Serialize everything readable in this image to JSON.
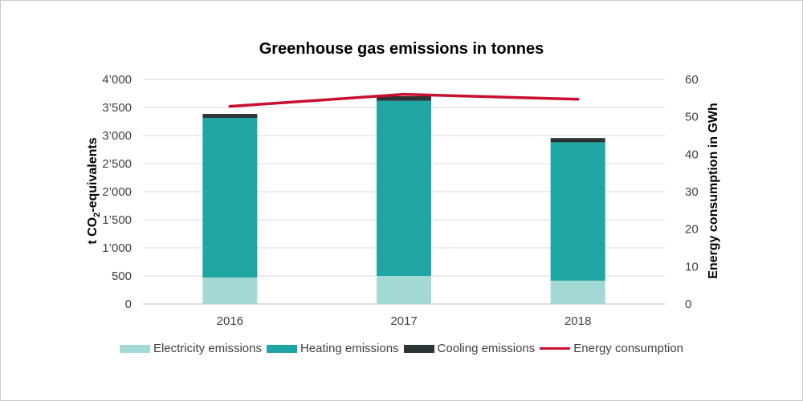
{
  "chart_data": {
    "type": "bar",
    "title": "Greenhouse gas emissions in tonnes",
    "categories": [
      "2016",
      "2017",
      "2018"
    ],
    "ylabel_parts": [
      "t CO",
      "2",
      "-equivalents"
    ],
    "y2label": "Energy consumption in GWh",
    "ylim": [
      0,
      4000
    ],
    "y2lim": [
      0,
      60
    ],
    "yticks": [
      "0",
      "500",
      "1’000",
      "1’500",
      "2’000",
      "2’500",
      "3’000",
      "3’500",
      "4’000"
    ],
    "y2ticks": [
      "0",
      "10",
      "20",
      "30",
      "40",
      "50",
      "60"
    ],
    "grid": true,
    "legend_position": "bottom",
    "series": [
      {
        "name": "Electricity emissions",
        "kind": "stacked-bar",
        "axis": "left",
        "color": "#a3d9d4",
        "values": [
          470,
          500,
          415
        ]
      },
      {
        "name": "Heating emissions",
        "kind": "stacked-bar",
        "axis": "left",
        "color": "#1fa5a3",
        "values": [
          2845,
          3120,
          2465
        ]
      },
      {
        "name": "Cooling emissions",
        "kind": "stacked-bar",
        "axis": "left",
        "color": "#2d3436",
        "values": [
          70,
          80,
          75
        ]
      },
      {
        "name": "Energy consumption",
        "kind": "line",
        "axis": "right",
        "color": "#c8102e",
        "values": [
          52.8,
          56.0,
          54.7
        ]
      }
    ]
  }
}
